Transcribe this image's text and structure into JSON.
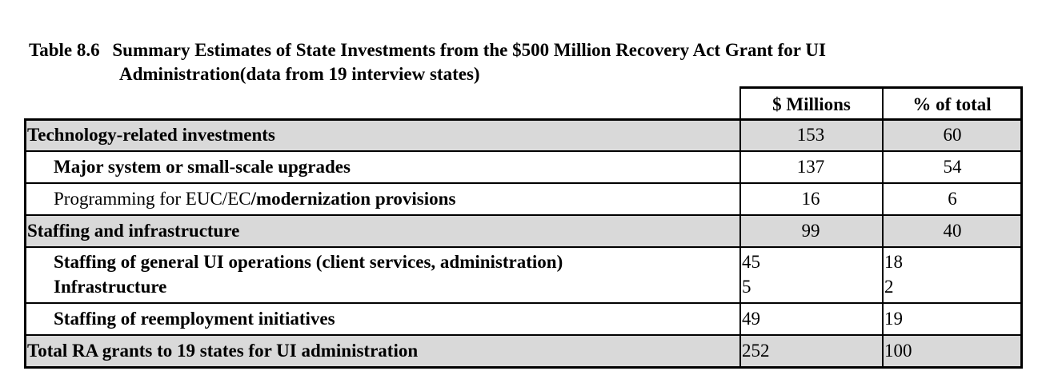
{
  "caption": {
    "number": "Table 8.6",
    "line1": "Summary Estimates of State Investments from the $500 Million Recovery Act Grant for UI",
    "line2": "Administration(data from 19 interview states)"
  },
  "table": {
    "headers": {
      "millions": "$ Millions",
      "percent": "% of total"
    },
    "rows": [
      {
        "label": "Technology-related investments",
        "millions": "153",
        "percent": "60"
      },
      {
        "label": "Major system or small-scale upgrades",
        "millions": "137",
        "percent": "54"
      },
      {
        "label_plain": "Programming for EUC/EC",
        "label_bold": "/modernization provisions",
        "millions": "16",
        "percent": "6"
      },
      {
        "label": "Staffing and infrastructure",
        "millions": "99",
        "percent": "40"
      },
      {
        "label": "Staffing of general UI operations (client services, administration)",
        "millions": "45",
        "percent": "18"
      },
      {
        "label": "Infrastructure",
        "millions": "5",
        "percent": "2"
      },
      {
        "label": "Staffing of reemployment initiatives",
        "millions": "49",
        "percent": "19"
      },
      {
        "label": "Total RA grants to 19 states for UI administration",
        "millions": "252",
        "percent": "100"
      }
    ]
  }
}
